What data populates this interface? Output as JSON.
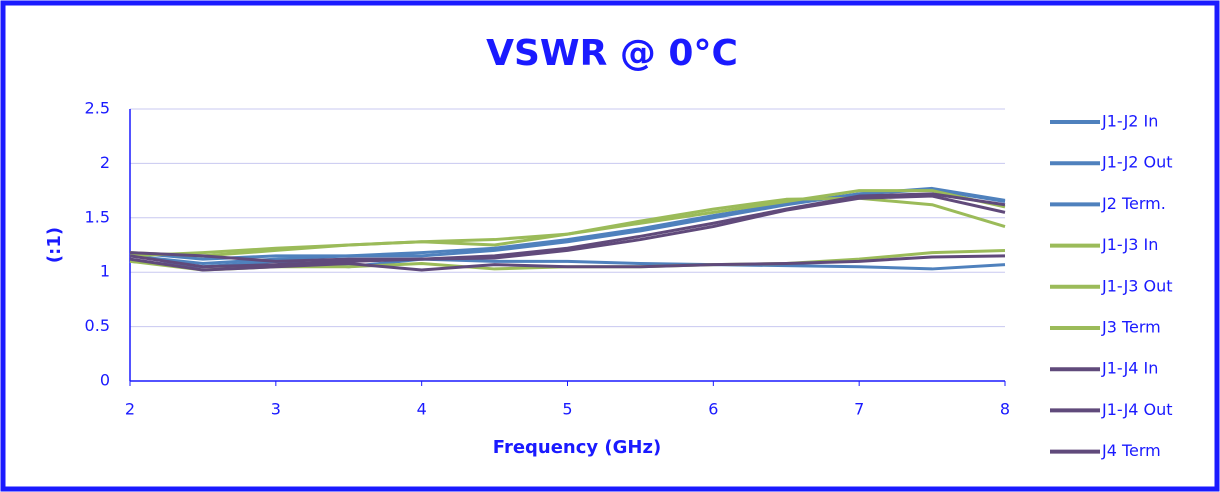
{
  "chart_data": {
    "type": "line",
    "title": "VSWR @ 0°C",
    "x_label": "Frequency (GHz)",
    "y_label": "(:1)",
    "x": [
      2,
      2.5,
      3,
      3.5,
      4,
      4.5,
      5,
      5.5,
      6,
      6.5,
      7,
      7.5,
      8
    ],
    "xlim": [
      2,
      8
    ],
    "xticks": [
      2,
      3,
      4,
      5,
      6,
      7,
      8
    ],
    "ylim": [
      0,
      2.5
    ],
    "yticks": [
      0,
      0.5,
      1,
      1.5,
      2,
      2.5
    ],
    "grid": true,
    "legend": "right",
    "series": [
      {
        "name": "J1-J2 In",
        "color": "#4f81bd",
        "values": [
          1.15,
          1.08,
          1.12,
          1.15,
          1.15,
          1.2,
          1.28,
          1.38,
          1.5,
          1.62,
          1.72,
          1.76,
          1.65
        ]
      },
      {
        "name": "J1-J2 Out",
        "color": "#4f81bd",
        "values": [
          1.1,
          1.05,
          1.1,
          1.05,
          1.12,
          1.1,
          1.1,
          1.08,
          1.07,
          1.06,
          1.05,
          1.03,
          1.07
        ]
      },
      {
        "name": "J2 Term.",
        "color": "#4f81bd",
        "values": [
          1.18,
          1.12,
          1.15,
          1.15,
          1.18,
          1.22,
          1.3,
          1.4,
          1.52,
          1.63,
          1.72,
          1.77,
          1.66
        ]
      },
      {
        "name": "J1-J3 In",
        "color": "#9bbb59",
        "values": [
          1.18,
          1.15,
          1.2,
          1.25,
          1.28,
          1.25,
          1.35,
          1.45,
          1.55,
          1.65,
          1.75,
          1.75,
          1.6
        ]
      },
      {
        "name": "J1-J3 Out",
        "color": "#9bbb59",
        "values": [
          1.1,
          1.02,
          1.05,
          1.05,
          1.08,
          1.03,
          1.05,
          1.05,
          1.07,
          1.08,
          1.12,
          1.18,
          1.2
        ]
      },
      {
        "name": "J3 Term",
        "color": "#9bbb59",
        "values": [
          1.15,
          1.18,
          1.22,
          1.25,
          1.28,
          1.3,
          1.35,
          1.47,
          1.58,
          1.67,
          1.68,
          1.62,
          1.42
        ]
      },
      {
        "name": "J1-J4 In",
        "color": "#604a7b",
        "values": [
          1.18,
          1.15,
          1.1,
          1.12,
          1.12,
          1.13,
          1.2,
          1.3,
          1.42,
          1.57,
          1.68,
          1.7,
          1.55
        ]
      },
      {
        "name": "J1-J4 Out",
        "color": "#604a7b",
        "values": [
          1.12,
          1.02,
          1.05,
          1.08,
          1.02,
          1.07,
          1.05,
          1.05,
          1.07,
          1.08,
          1.1,
          1.14,
          1.15
        ]
      },
      {
        "name": "J4 Term",
        "color": "#604a7b",
        "values": [
          1.15,
          1.05,
          1.07,
          1.1,
          1.12,
          1.15,
          1.22,
          1.33,
          1.45,
          1.58,
          1.7,
          1.72,
          1.62
        ]
      }
    ]
  }
}
